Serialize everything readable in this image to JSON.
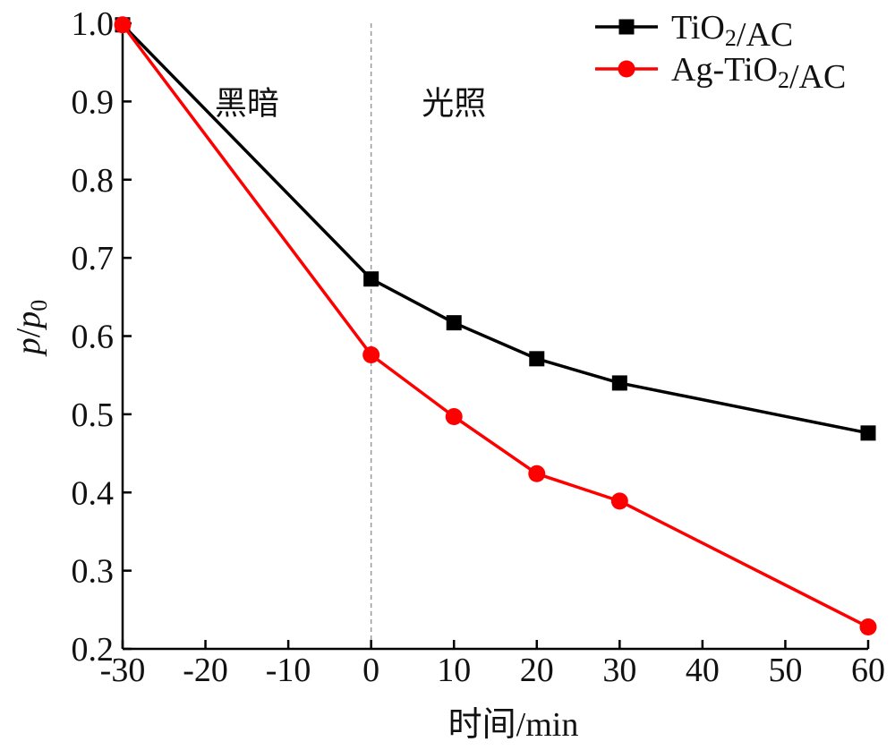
{
  "chart_data": {
    "type": "line",
    "xlabel": "时间/min",
    "ylabel": "p/p0",
    "xlim": [
      -30,
      60
    ],
    "ylim": [
      0.2,
      1.0
    ],
    "x_ticks": [
      -30,
      -20,
      -10,
      0,
      10,
      20,
      30,
      40,
      50,
      60
    ],
    "x_tick_labels": [
      "-30",
      "-20",
      "-10",
      "0",
      "10",
      "20",
      "30",
      "40",
      "50",
      "60"
    ],
    "y_ticks": [
      0.2,
      0.3,
      0.4,
      0.5,
      0.6,
      0.7,
      0.8,
      0.9,
      1.0
    ],
    "y_tick_labels": [
      "0.2",
      "0.3",
      "0.4",
      "0.5",
      "0.6",
      "0.7",
      "0.8",
      "0.9",
      "1.0"
    ],
    "grid": false,
    "legend_position": "top-right",
    "series": [
      {
        "name": "TiO2/AC",
        "color": "#000000",
        "marker": "square",
        "x": [
          -30,
          0,
          10,
          20,
          30,
          60
        ],
        "y": [
          0.998,
          0.673,
          0.617,
          0.571,
          0.54,
          0.476
        ]
      },
      {
        "name": "Ag-TiO2/AC",
        "color": "#ff0000",
        "marker": "circle",
        "x": [
          -30,
          0,
          10,
          20,
          30,
          60
        ],
        "y": [
          0.998,
          0.576,
          0.497,
          0.424,
          0.389,
          0.228
        ]
      }
    ],
    "annotations": [
      {
        "text": "黑暗",
        "x": -15,
        "y": 0.9
      },
      {
        "text": "光照",
        "x": 10,
        "y": 0.9
      }
    ],
    "divider_x": 0
  }
}
